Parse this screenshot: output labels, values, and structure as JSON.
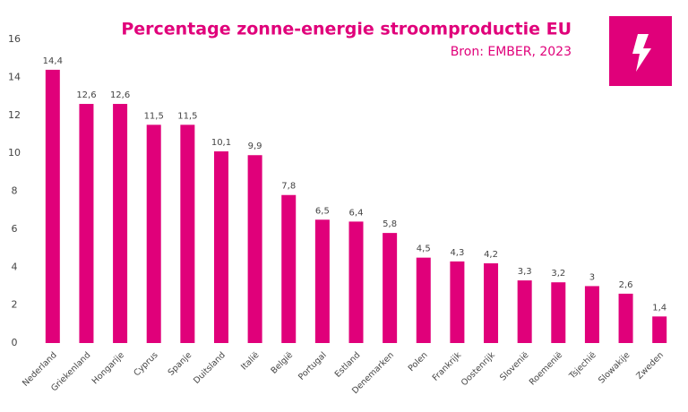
{
  "chart_data": {
    "type": "bar",
    "title": "Percentage zonne-energie stroomproductie EU",
    "subtitle": "Bron: EMBER, 2023",
    "categories": [
      "Nederland",
      "Griekenland",
      "Hongarije",
      "Cyprus",
      "Spanje",
      "Duitsland",
      "Italië",
      "België",
      "Portugal",
      "Estland",
      "Denemarken",
      "Polen",
      "Frankrijk",
      "Oostenrijk",
      "Slovenië",
      "Roemenië",
      "Tsjechië",
      "Slowakije",
      "Zweden"
    ],
    "values": [
      14.4,
      12.6,
      12.6,
      11.5,
      11.5,
      10.1,
      9.9,
      7.8,
      6.5,
      6.4,
      5.8,
      4.5,
      4.3,
      4.2,
      3.3,
      3.2,
      3,
      2.6,
      1.4
    ],
    "value_labels": [
      "14,4",
      "12,6",
      "12,6",
      "11,5",
      "11,5",
      "10,1",
      "9,9",
      "7,8",
      "6,5",
      "6,4",
      "5,8",
      "4,5",
      "4,3",
      "4,2",
      "3,3",
      "3,2",
      "3",
      "2,6",
      "1,4"
    ],
    "color": "#e0007a",
    "ylim": [
      0,
      16
    ],
    "yticks": [
      0,
      2,
      4,
      6,
      8,
      10,
      12,
      14,
      16
    ],
    "grid": false
  }
}
